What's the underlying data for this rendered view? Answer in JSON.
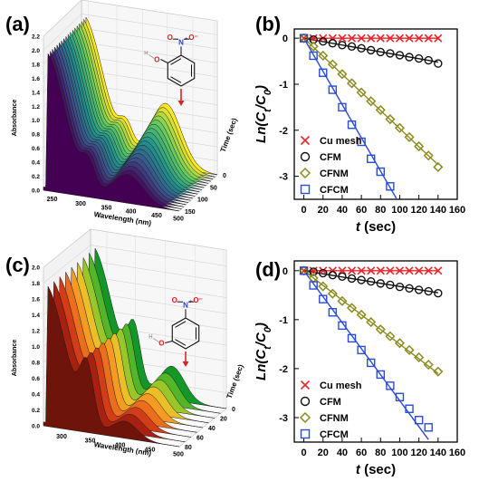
{
  "panels": [
    {
      "letter": "(a)",
      "kind": "waterfall",
      "ylabel": "Absorbance",
      "xlabel": "Wavelength (nm)",
      "zlabel": "Time (sec)",
      "yticks": [
        "0.0",
        "0.2",
        "0.4",
        "0.6",
        "0.8",
        "1.0",
        "1.2",
        "1.4",
        "1.6",
        "1.8",
        "2.0",
        "2.2"
      ],
      "xticks": [
        "250",
        "300",
        "350",
        "400",
        "450",
        "500"
      ],
      "zticks": [
        "0",
        "50",
        "100",
        "150"
      ],
      "palette": "viridis"
    },
    {
      "letter": "(c)",
      "kind": "waterfall",
      "ylabel": "Absorbance",
      "xlabel": "Wavelength (nm)",
      "zlabel": "Time (sec)",
      "yticks": [
        "0.0",
        "0.2",
        "0.4",
        "0.6",
        "0.8",
        "1.0",
        "1.2",
        "1.4",
        "1.6",
        "1.8",
        "2.0"
      ],
      "xticks": [
        "300",
        "350",
        "400",
        "450",
        "500"
      ],
      "zticks": [
        "0",
        "20",
        "40",
        "60",
        "80"
      ],
      "palette": "autumn"
    }
  ],
  "molecule_labels": {
    "N": "N",
    "O": "O",
    "O_minus": "O⁻",
    "N_plus": "+",
    "OH": "H"
  },
  "chart_data": [
    {
      "panel": "(b)",
      "type": "scatter",
      "ylabel_main": "Ln(C",
      "ylabel_sub1": "t",
      "ylabel_mid": "/C",
      "ylabel_sub2": "0",
      "ylabel_end": ")",
      "xlabel_italic": "t",
      "xlabel_rest": " (sec)",
      "xlim": [
        -10,
        160
      ],
      "ylim": [
        -3.5,
        0.2
      ],
      "xticks": [
        0,
        20,
        40,
        60,
        80,
        100,
        120,
        140,
        160
      ],
      "yticks": [
        0,
        -1,
        -2,
        -3
      ],
      "series": [
        {
          "name": "Cu mesh",
          "marker": "x",
          "color": "#e8262b",
          "x": [
            0,
            10,
            20,
            30,
            40,
            50,
            60,
            70,
            80,
            90,
            100,
            110,
            120,
            130,
            140
          ],
          "y": [
            0,
            0,
            0,
            0,
            0,
            0,
            0,
            0,
            0,
            0,
            0,
            0,
            0,
            0,
            0
          ],
          "fit": [
            [
              0,
              0
            ],
            [
              140,
              0
            ]
          ]
        },
        {
          "name": "CFM",
          "marker": "circle",
          "color": "#111111",
          "x": [
            0,
            10,
            20,
            30,
            40,
            50,
            60,
            70,
            80,
            90,
            100,
            110,
            120,
            130,
            140
          ],
          "y": [
            0,
            -0.03,
            -0.07,
            -0.11,
            -0.15,
            -0.18,
            -0.22,
            -0.26,
            -0.3,
            -0.33,
            -0.37,
            -0.41,
            -0.44,
            -0.48,
            -0.55
          ],
          "fit": [
            [
              0,
              0
            ],
            [
              140,
              -0.52
            ]
          ]
        },
        {
          "name": "CFNM",
          "marker": "diamond",
          "color": "#8b8b1e",
          "x": [
            0,
            10,
            20,
            30,
            40,
            50,
            60,
            70,
            80,
            90,
            100,
            110,
            120,
            130,
            140
          ],
          "y": [
            0,
            -0.18,
            -0.38,
            -0.57,
            -0.78,
            -0.98,
            -1.18,
            -1.37,
            -1.56,
            -1.76,
            -1.95,
            -2.15,
            -2.35,
            -2.55,
            -2.8
          ],
          "fit": [
            [
              0,
              0
            ],
            [
              140,
              -2.75
            ]
          ]
        },
        {
          "name": "CFCM",
          "marker": "square",
          "color": "#2b4bd9",
          "x": [
            0,
            10,
            20,
            30,
            40,
            50,
            60,
            70,
            80,
            90
          ],
          "y": [
            0,
            -0.38,
            -0.75,
            -1.12,
            -1.5,
            -1.88,
            -2.25,
            -2.62,
            -2.9,
            -3.22
          ],
          "fit": [
            [
              0,
              0
            ],
            [
              97,
              -3.5
            ]
          ]
        }
      ]
    },
    {
      "panel": "(d)",
      "type": "scatter",
      "ylabel_main": "Ln(C",
      "ylabel_sub1": "t",
      "ylabel_mid": "/C",
      "ylabel_sub2": "0",
      "ylabel_end": ")",
      "xlabel_italic": "t",
      "xlabel_rest": " (sec)",
      "xlim": [
        -10,
        160
      ],
      "ylim": [
        -3.5,
        0.2
      ],
      "xticks": [
        0,
        20,
        40,
        60,
        80,
        100,
        120,
        140,
        160
      ],
      "yticks": [
        0,
        -1,
        -2,
        -3
      ],
      "series": [
        {
          "name": "Cu mesh",
          "marker": "x",
          "color": "#e8262b",
          "x": [
            0,
            10,
            20,
            30,
            40,
            50,
            60,
            70,
            80,
            90,
            100,
            110,
            120,
            130,
            140
          ],
          "y": [
            0,
            0,
            0,
            0,
            0,
            0,
            0,
            0,
            0,
            0,
            0,
            0,
            0,
            0,
            0
          ],
          "fit": [
            [
              0,
              0
            ],
            [
              140,
              0
            ]
          ]
        },
        {
          "name": "CFM",
          "marker": "circle",
          "color": "#111111",
          "x": [
            0,
            10,
            20,
            30,
            40,
            50,
            60,
            70,
            80,
            90,
            100,
            110,
            120,
            130,
            140
          ],
          "y": [
            0,
            -0.02,
            -0.05,
            -0.09,
            -0.12,
            -0.16,
            -0.19,
            -0.22,
            -0.26,
            -0.29,
            -0.33,
            -0.36,
            -0.39,
            -0.42,
            -0.46
          ],
          "fit": [
            [
              0,
              0
            ],
            [
              140,
              -0.45
            ]
          ]
        },
        {
          "name": "CFNM",
          "marker": "diamond",
          "color": "#8b8b1e",
          "x": [
            0,
            10,
            20,
            30,
            40,
            50,
            60,
            70,
            80,
            90,
            100,
            110,
            120,
            130,
            140
          ],
          "y": [
            0,
            -0.15,
            -0.32,
            -0.47,
            -0.62,
            -0.76,
            -0.9,
            -1.05,
            -1.2,
            -1.34,
            -1.48,
            -1.62,
            -1.77,
            -1.92,
            -2.06
          ],
          "fit": [
            [
              0,
              0
            ],
            [
              140,
              -2.1
            ]
          ]
        },
        {
          "name": "CFCM",
          "marker": "square",
          "color": "#2b4bd9",
          "x": [
            0,
            10,
            20,
            30,
            40,
            50,
            60,
            70,
            80,
            90,
            100,
            110,
            120,
            130
          ],
          "y": [
            0,
            -0.3,
            -0.58,
            -0.85,
            -1.12,
            -1.38,
            -1.62,
            -1.88,
            -2.12,
            -2.35,
            -2.58,
            -2.82,
            -3.05,
            -3.2
          ],
          "fit": [
            [
              0,
              0
            ],
            [
              130,
              -3.45
            ]
          ]
        }
      ]
    }
  ]
}
